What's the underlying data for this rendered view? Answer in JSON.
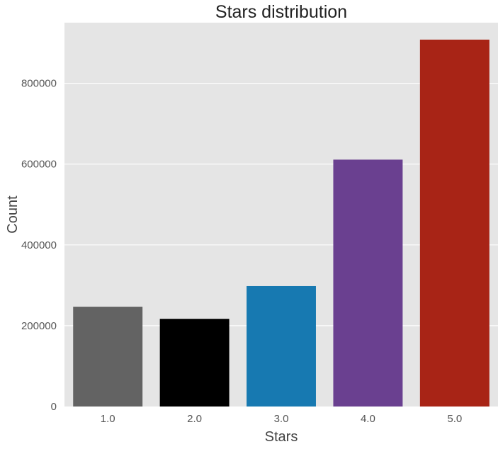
{
  "chart_data": {
    "type": "bar",
    "title": "Stars distribution",
    "xlabel": "Stars",
    "ylabel": "Count",
    "categories": [
      "1.0",
      "2.0",
      "3.0",
      "4.0",
      "5.0"
    ],
    "values": [
      247000,
      217000,
      298000,
      611000,
      908000
    ],
    "colors": [
      "#636363",
      "#000000",
      "#1779b1",
      "#6a4090",
      "#a82416"
    ],
    "ylim": [
      0,
      950000
    ],
    "yticks": [
      0,
      200000,
      400000,
      600000,
      800000
    ],
    "ytick_labels": [
      "0",
      "200000",
      "400000",
      "600000",
      "800000"
    ],
    "grid": true,
    "background": "#e5e5e5",
    "legend": "none"
  }
}
